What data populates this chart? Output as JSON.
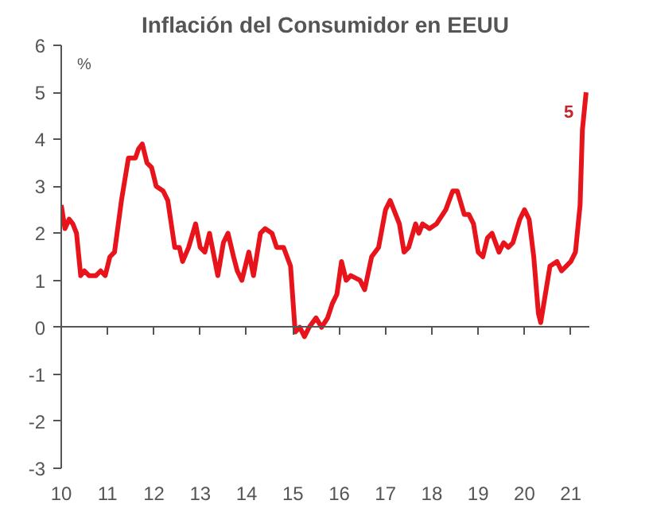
{
  "chart_data": {
    "type": "line",
    "title": "Inflación del Consumidor en EEUU",
    "ylabel": "%",
    "x": [
      2010.0,
      2010.08,
      2010.17,
      2010.25,
      2010.33,
      2010.42,
      2010.5,
      2010.6,
      2010.75,
      2010.85,
      2010.95,
      2011.05,
      2011.15,
      2011.3,
      2011.45,
      2011.6,
      2011.67,
      2011.75,
      2011.85,
      2011.95,
      2012.05,
      2012.2,
      2012.3,
      2012.45,
      2012.55,
      2012.62,
      2012.75,
      2012.9,
      2013.0,
      2013.1,
      2013.2,
      2013.3,
      2013.38,
      2013.5,
      2013.6,
      2013.72,
      2013.8,
      2013.9,
      2014.05,
      2014.15,
      2014.3,
      2014.4,
      2014.55,
      2014.65,
      2014.8,
      2014.95,
      2015.05,
      2015.15,
      2015.25,
      2015.35,
      2015.5,
      2015.62,
      2015.75,
      2015.85,
      2015.95,
      2016.05,
      2016.15,
      2016.25,
      2016.45,
      2016.55,
      2016.7,
      2016.85,
      2017.0,
      2017.1,
      2017.3,
      2017.4,
      2017.5,
      2017.65,
      2017.72,
      2017.8,
      2017.95,
      2018.1,
      2018.3,
      2018.45,
      2018.55,
      2018.7,
      2018.8,
      2018.9,
      2019.0,
      2019.1,
      2019.2,
      2019.3,
      2019.45,
      2019.55,
      2019.65,
      2019.75,
      2019.9,
      2020.0,
      2020.1,
      2020.2,
      2020.3,
      2020.35,
      2020.45,
      2020.55,
      2020.7,
      2020.8,
      2020.9,
      2021.0,
      2021.1,
      2021.2,
      2021.25,
      2021.33
    ],
    "series": [
      {
        "color": "#e8141c",
        "values": [
          2.6,
          2.1,
          2.3,
          2.2,
          2.0,
          1.1,
          1.2,
          1.1,
          1.1,
          1.2,
          1.1,
          1.5,
          1.6,
          2.7,
          3.6,
          3.6,
          3.8,
          3.9,
          3.5,
          3.4,
          3.0,
          2.9,
          2.7,
          1.7,
          1.7,
          1.4,
          1.7,
          2.2,
          1.7,
          1.6,
          2.0,
          1.5,
          1.1,
          1.8,
          2.0,
          1.5,
          1.2,
          1.0,
          1.6,
          1.1,
          2.0,
          2.1,
          2.0,
          1.7,
          1.7,
          1.3,
          -0.1,
          0.0,
          -0.2,
          0.0,
          0.2,
          0.0,
          0.2,
          0.5,
          0.7,
          1.4,
          1.0,
          1.1,
          1.0,
          0.8,
          1.5,
          1.7,
          2.5,
          2.7,
          2.2,
          1.6,
          1.7,
          2.2,
          2.0,
          2.2,
          2.1,
          2.2,
          2.5,
          2.9,
          2.9,
          2.4,
          2.4,
          2.2,
          1.6,
          1.5,
          1.9,
          2.0,
          1.6,
          1.8,
          1.7,
          1.8,
          2.3,
          2.5,
          2.3,
          1.5,
          0.3,
          0.1,
          0.7,
          1.3,
          1.4,
          1.2,
          1.3,
          1.4,
          1.6,
          2.6,
          4.2,
          5.0
        ]
      }
    ],
    "xlim": [
      2010,
      2021.4
    ],
    "xticks": [
      {
        "value": 2010,
        "label": "10"
      },
      {
        "value": 2011,
        "label": "11"
      },
      {
        "value": 2012,
        "label": "12"
      },
      {
        "value": 2013,
        "label": "13"
      },
      {
        "value": 2014,
        "label": "14"
      },
      {
        "value": 2015,
        "label": "15"
      },
      {
        "value": 2016,
        "label": "16"
      },
      {
        "value": 2017,
        "label": "17"
      },
      {
        "value": 2018,
        "label": "18"
      },
      {
        "value": 2019,
        "label": "19"
      },
      {
        "value": 2020,
        "label": "20"
      },
      {
        "value": 2021,
        "label": "21"
      }
    ],
    "ylim": [
      -3,
      6
    ],
    "yticks": [
      -3,
      -2,
      -1,
      0,
      1,
      2,
      3,
      4,
      5,
      6
    ],
    "annotations": [
      {
        "text": "5",
        "x": 2021.33,
        "y": 5.0
      }
    ],
    "marker": "none",
    "line_style": "solid"
  }
}
